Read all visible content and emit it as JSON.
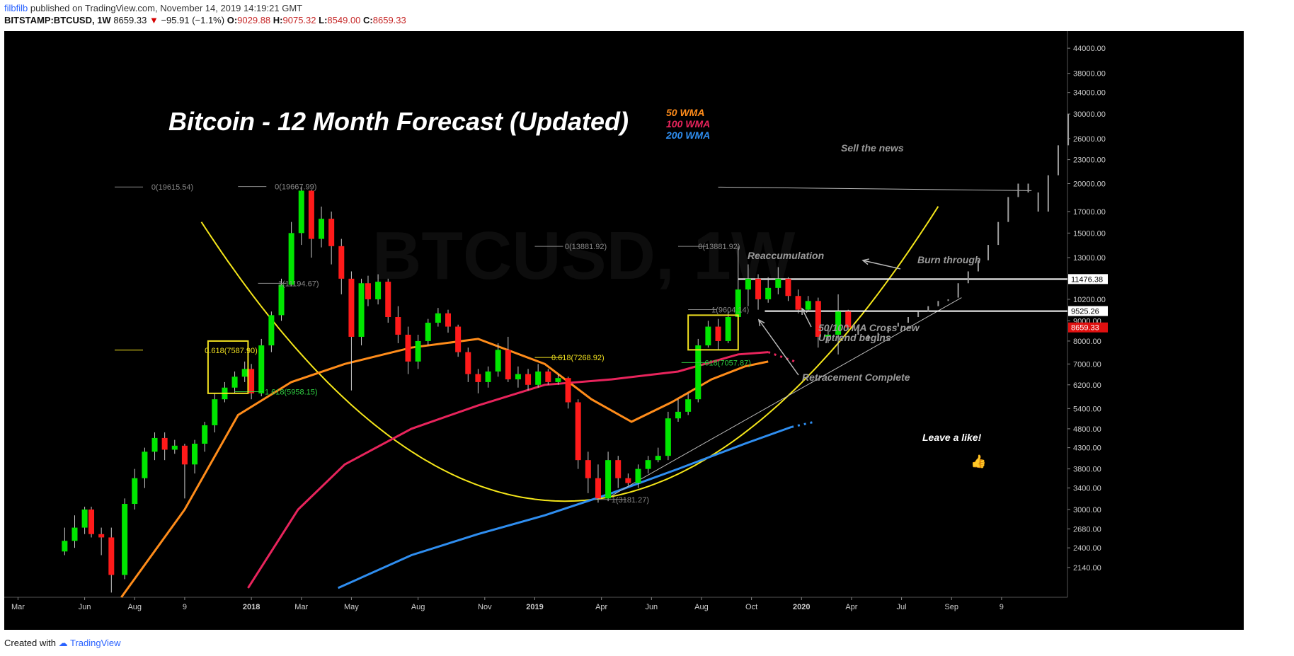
{
  "header": {
    "user": "filbfilb",
    "published_text": "published on TradingView.com, November 14, 2019 14:19:21 GMT",
    "symbol": "BITSTAMP:BTCUSD, 1W",
    "last": "8659.33",
    "change_arrow": "▼",
    "change": "−95.91 (−1.1%)",
    "o_label": "O:",
    "o": "9029.88",
    "h_label": "H:",
    "h": "9075.32",
    "l_label": "L:",
    "l": "8549.00",
    "c_label": "C:",
    "c": "8659.33"
  },
  "footer": {
    "created_with": "Created with",
    "brand": "TradingView"
  },
  "colors": {
    "bull": "#00e600",
    "bear": "#ff1a1a",
    "wma50": "#ff8c1a",
    "wma100": "#e8245c",
    "wma200": "#2f8ef0",
    "parabola": "#f5e61a",
    "fib_yellow": "#f0e020",
    "fib_green": "#2ecc40",
    "annotation": "#9a9a9a",
    "price_marker_red": "#e01010"
  },
  "chart_data": {
    "type": "candlestick",
    "symbol": "BTCUSD",
    "interval": "1W",
    "title": "Bitcoin - 12 Month Forecast (Updated)",
    "watermark": "BTCUSD, 1W",
    "y_scale": "log",
    "ylim": [
      1800,
      48000
    ],
    "x_ticks": [
      "Mar",
      "Jun",
      "Aug",
      "9",
      "2018",
      "Mar",
      "May",
      "Aug",
      "Nov",
      "2019",
      "Apr",
      "Jun",
      "Aug",
      "Oct",
      "2020",
      "Apr",
      "Jul",
      "Sep",
      "9"
    ],
    "y_ticks": [
      "44000.00",
      "38000.00",
      "34000.00",
      "30000.00",
      "26000.00",
      "23000.00",
      "20000.00",
      "17000.00",
      "15000.00",
      "13000.00",
      "10200.00",
      "9000.00",
      "8000.00",
      "7000.00",
      "6200.00",
      "5400.00",
      "4800.00",
      "4300.00",
      "3800.00",
      "3400.00",
      "3000.00",
      "2680.00",
      "2400.00",
      "2140.00"
    ],
    "price_markers": [
      {
        "label": "11476.38",
        "value": 11476.38,
        "style": "outline"
      },
      {
        "label": "9525.26",
        "value": 9525.26,
        "style": "outline"
      },
      {
        "label": "8659.33",
        "value": 8659.33,
        "style": "filled-red"
      }
    ],
    "legend": [
      {
        "name": "50 WMA",
        "color": "#ff8c1a"
      },
      {
        "name": "100 WMA",
        "color": "#e8245c"
      },
      {
        "name": "200 WMA",
        "color": "#2f8ef0"
      }
    ],
    "series": [
      {
        "name": "50 WMA",
        "values": [
          [
            1.65,
            1800
          ],
          [
            2.6,
            3000
          ],
          [
            3.4,
            5200
          ],
          [
            4.2,
            6300
          ],
          [
            5.0,
            7000
          ],
          [
            6.0,
            7700
          ],
          [
            7.0,
            8100
          ],
          [
            8.0,
            7000
          ],
          [
            8.7,
            5700
          ],
          [
            9.3,
            5000
          ],
          [
            9.9,
            5600
          ],
          [
            10.5,
            6400
          ],
          [
            11.0,
            6900
          ],
          [
            11.35,
            7100
          ]
        ]
      },
      {
        "name": "100 WMA",
        "values": [
          [
            3.55,
            1900
          ],
          [
            4.3,
            3000
          ],
          [
            5.0,
            3900
          ],
          [
            6.0,
            4800
          ],
          [
            7.0,
            5500
          ],
          [
            8.0,
            6200
          ],
          [
            9.0,
            6400
          ],
          [
            10.0,
            6700
          ],
          [
            10.9,
            7400
          ],
          [
            11.35,
            7500
          ]
        ]
      },
      {
        "name": "200 WMA",
        "values": [
          [
            4.9,
            1900
          ],
          [
            6.0,
            2300
          ],
          [
            7.0,
            2600
          ],
          [
            8.0,
            2900
          ],
          [
            9.0,
            3300
          ],
          [
            10.0,
            3800
          ],
          [
            11.0,
            4400
          ],
          [
            11.7,
            4850
          ]
        ]
      }
    ],
    "candles_hist": [
      [
        0.8,
        2350,
        2500,
        2700,
        2300
      ],
      [
        0.95,
        2500,
        2700,
        2900,
        2400
      ],
      [
        1.1,
        2700,
        3000,
        3050,
        2600
      ],
      [
        1.2,
        3000,
        2600,
        3050,
        2550
      ],
      [
        1.35,
        2600,
        2550,
        2700,
        2300
      ],
      [
        1.5,
        2550,
        2050,
        2700,
        1850
      ],
      [
        1.7,
        2050,
        3100,
        3200,
        2000
      ],
      [
        1.85,
        3100,
        3600,
        3800,
        3000
      ],
      [
        2.0,
        3600,
        4200,
        4300,
        3400
      ],
      [
        2.15,
        4200,
        4550,
        4700,
        4000
      ],
      [
        2.3,
        4550,
        4250,
        4700,
        4000
      ],
      [
        2.45,
        4250,
        4350,
        4500,
        4150
      ],
      [
        2.6,
        4350,
        3900,
        4400,
        3200
      ],
      [
        2.75,
        3900,
        4400,
        4500,
        3700
      ],
      [
        2.9,
        4400,
        4900,
        5000,
        4200
      ],
      [
        3.05,
        4900,
        5700,
        5900,
        4700
      ],
      [
        3.2,
        5700,
        6100,
        6300,
        5600
      ],
      [
        3.35,
        6100,
        6500,
        6700,
        5900
      ],
      [
        3.5,
        6500,
        6800,
        7100,
        6300
      ],
      [
        3.6,
        6800,
        5900,
        7000,
        5700
      ],
      [
        3.75,
        5900,
        7800,
        8100,
        5800
      ],
      [
        3.9,
        7800,
        9300,
        9500,
        7500
      ],
      [
        4.05,
        9300,
        11100,
        11500,
        9000
      ],
      [
        4.2,
        11100,
        15000,
        16000,
        11000
      ],
      [
        4.35,
        15000,
        19200,
        19667,
        14000
      ],
      [
        4.5,
        19200,
        14500,
        19300,
        13000
      ],
      [
        4.65,
        14500,
        16300,
        17500,
        13800
      ],
      [
        4.8,
        16300,
        13900,
        17000,
        12500
      ],
      [
        4.95,
        13900,
        11500,
        14500,
        10500
      ],
      [
        5.1,
        11500,
        8200,
        12000,
        6000
      ],
      [
        5.25,
        8200,
        11200,
        11500,
        7800
      ],
      [
        5.35,
        11200,
        10200,
        11700,
        9800
      ],
      [
        5.5,
        10200,
        11300,
        11800,
        9900
      ],
      [
        5.65,
        11300,
        9200,
        11500,
        8900
      ],
      [
        5.8,
        9200,
        8300,
        9800,
        7900
      ],
      [
        5.95,
        8300,
        7100,
        8700,
        6600
      ],
      [
        6.1,
        7100,
        8000,
        8300,
        6800
      ],
      [
        6.25,
        8000,
        8900,
        9100,
        7800
      ],
      [
        6.4,
        8900,
        9400,
        9700,
        8700
      ],
      [
        6.55,
        9400,
        8700,
        9600,
        8400
      ],
      [
        6.7,
        8700,
        7500,
        8800,
        7300
      ],
      [
        6.85,
        7500,
        6600,
        7700,
        6300
      ],
      [
        7.0,
        6600,
        6300,
        6800,
        5900
      ],
      [
        7.15,
        6300,
        6700,
        6900,
        6100
      ],
      [
        7.3,
        6700,
        7600,
        7900,
        6500
      ],
      [
        7.45,
        7600,
        6400,
        8200,
        6300
      ],
      [
        7.6,
        6400,
        6600,
        6900,
        6100
      ],
      [
        7.75,
        6600,
        6200,
        6800,
        6000
      ],
      [
        7.9,
        6200,
        6700,
        7000,
        6100
      ],
      [
        8.05,
        6700,
        6300,
        6800,
        6200
      ],
      [
        8.2,
        6300,
        6450,
        6600,
        6200
      ],
      [
        8.35,
        6450,
        5600,
        6500,
        5400
      ],
      [
        8.5,
        5600,
        4000,
        5700,
        3800
      ],
      [
        8.65,
        4000,
        3600,
        4200,
        3300
      ],
      [
        8.8,
        3600,
        3200,
        3900,
        3122
      ],
      [
        8.95,
        3200,
        4000,
        4200,
        3150
      ],
      [
        9.1,
        4000,
        3600,
        4100,
        3400
      ],
      [
        9.25,
        3600,
        3500,
        3700,
        3450
      ],
      [
        9.4,
        3500,
        3800,
        3900,
        3400
      ],
      [
        9.55,
        3800,
        4000,
        4100,
        3700
      ],
      [
        9.7,
        4000,
        4100,
        4300,
        3950
      ],
      [
        9.85,
        4100,
        5100,
        5300,
        4000
      ],
      [
        10.0,
        5100,
        5300,
        5700,
        5000
      ],
      [
        10.15,
        5300,
        5700,
        5900,
        5200
      ],
      [
        10.3,
        5700,
        7800,
        8100,
        5600
      ],
      [
        10.45,
        7800,
        8700,
        9000,
        7700
      ],
      [
        10.6,
        8700,
        8000,
        9100,
        7600
      ],
      [
        10.75,
        8000,
        9200,
        9500,
        7900
      ],
      [
        10.9,
        9200,
        10800,
        13881,
        9000
      ],
      [
        11.05,
        10800,
        11500,
        12500,
        9800
      ],
      [
        11.2,
        11500,
        10200,
        11800,
        9600
      ],
      [
        11.35,
        10200,
        10900,
        11600,
        10000
      ],
      [
        11.5,
        10900,
        11500,
        12300,
        10500
      ],
      [
        11.65,
        11500,
        10400,
        11600,
        10100
      ],
      [
        11.8,
        10400,
        9600,
        10800,
        9400
      ],
      [
        11.95,
        9600,
        10100,
        10400,
        9500
      ],
      [
        12.1,
        10100,
        8200,
        10300,
        7700
      ],
      [
        12.25,
        8200,
        8300,
        8600,
        7900
      ],
      [
        12.4,
        8300,
        9500,
        10500,
        7400
      ],
      [
        12.55,
        9500,
        8659,
        9600,
        8549
      ]
    ],
    "candles_projection": [
      [
        12.7,
        8700,
        8300
      ],
      [
        12.85,
        8300,
        8000
      ],
      [
        13.0,
        8000,
        8400
      ],
      [
        13.15,
        8400,
        8700
      ],
      [
        13.3,
        8700,
        8900
      ],
      [
        13.45,
        8900,
        9200
      ],
      [
        13.6,
        9200,
        9500
      ],
      [
        13.75,
        9500,
        9800
      ],
      [
        13.9,
        9800,
        10100
      ],
      [
        14.05,
        10100,
        10200
      ],
      [
        14.2,
        10300,
        11200
      ],
      [
        14.35,
        11200,
        12000
      ],
      [
        14.5,
        12000,
        12800
      ],
      [
        14.65,
        12800,
        14000
      ],
      [
        14.8,
        14000,
        16000
      ],
      [
        14.95,
        16000,
        18500
      ],
      [
        15.1,
        18500,
        20000
      ],
      [
        15.25,
        20000,
        19000
      ],
      [
        15.4,
        19000,
        17000
      ],
      [
        15.55,
        17000,
        21000
      ],
      [
        15.7,
        21000,
        25000
      ],
      [
        15.85,
        25000,
        30000
      ]
    ],
    "fib_levels": [
      {
        "label": "0(19615.54)",
        "value": 19615.54,
        "color": "#888888"
      },
      {
        "label": "0(19667.99)",
        "value": 19667.99,
        "color": "#888888"
      },
      {
        "label": "1(11194.67)",
        "value": 11194.67,
        "color": "#888888"
      },
      {
        "label": "0.618(7587.90)",
        "value": 7587.9,
        "color": "#f0e020"
      },
      {
        "label": "1.618(5958.15)",
        "value": 5958.15,
        "color": "#2ecc40"
      },
      {
        "label": "0(13881.92)",
        "value": 13881.92,
        "color": "#888888"
      },
      {
        "label": "0(13881.92)",
        "value": 13881.92,
        "color": "#888888"
      },
      {
        "label": "0.618(7268.92)",
        "value": 7268.92,
        "color": "#f0e020"
      },
      {
        "label": "1.618(7057.87)",
        "value": 7057.87,
        "color": "#2ecc40"
      },
      {
        "label": "1(9604.14)",
        "value": 9604.14,
        "color": "#888888"
      },
      {
        "label": "1(3181.27)",
        "value": 3181.27,
        "color": "#888888"
      }
    ],
    "annotations": [
      {
        "text": "Sell the news"
      },
      {
        "text": "Reaccumulation"
      },
      {
        "text": "Burn through"
      },
      {
        "text": "50/100 MA Cross new"
      },
      {
        "text": "Uptrend begins"
      },
      {
        "text": "Retracement Complete"
      },
      {
        "text": "Leave a like!"
      }
    ]
  }
}
